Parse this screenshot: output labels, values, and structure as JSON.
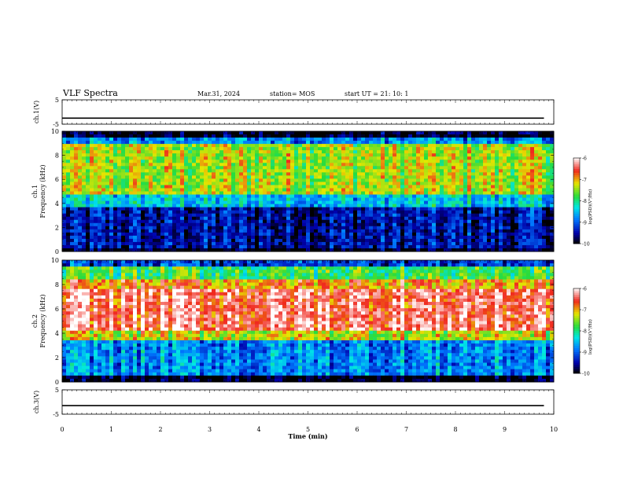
{
  "header": {
    "title": "VLF Spectra",
    "date": "Mar.31, 2024",
    "station": "station= MOS",
    "start": "start  UT  =  21: 10: 1"
  },
  "chart_data": [
    {
      "type": "line",
      "panel": "ch1-voltage",
      "ylabel": "ch.1(V)",
      "ylim": [
        -5,
        5
      ],
      "yticks": [
        "5",
        "-5"
      ],
      "xlim": [
        0,
        10
      ],
      "series": [
        {
          "x": [
            0,
            9.8
          ],
          "y": [
            -2.5,
            -2.5
          ]
        }
      ]
    },
    {
      "type": "heatmap",
      "panel": "ch1-spectrogram",
      "ylabel": "ch.1\nFrequency (kHz)",
      "ylim": [
        0,
        10
      ],
      "yticks": [
        "0",
        "2",
        "4",
        "6",
        "8",
        "10"
      ],
      "xlim": [
        0,
        9.8
      ],
      "bands": [
        {
          "from": 0,
          "to": 0.3,
          "level": -10
        },
        {
          "from": 0.3,
          "to": 3.8,
          "level": -9.5
        },
        {
          "from": 3.8,
          "to": 4.8,
          "level": -8.5
        },
        {
          "from": 4.8,
          "to": 9.0,
          "level": -7.4
        },
        {
          "from": 9.0,
          "to": 9.6,
          "level": -8.8
        },
        {
          "from": 9.6,
          "to": 10,
          "level": -10
        }
      ],
      "colorbar": {
        "range": [
          -10,
          -6
        ],
        "ticks": [
          "-6",
          "-7",
          "-8",
          "-9",
          "-10"
        ],
        "label": "log(PSD)(V²/Hz)"
      }
    },
    {
      "type": "heatmap",
      "panel": "ch2-spectrogram",
      "ylabel": "ch.2\nFrequency (kHz)",
      "ylim": [
        0,
        10
      ],
      "yticks": [
        "0",
        "2",
        "4",
        "6",
        "8",
        "10"
      ],
      "xlim": [
        0,
        9.8
      ],
      "bands": [
        {
          "from": 0,
          "to": 0.4,
          "level": -10
        },
        {
          "from": 0.4,
          "to": 3.4,
          "level": -8.8
        },
        {
          "from": 3.4,
          "to": 4.2,
          "level": -7.3
        },
        {
          "from": 4.2,
          "to": 7.6,
          "level": -6.4
        },
        {
          "from": 7.6,
          "to": 8.4,
          "level": -6.9
        },
        {
          "from": 8.4,
          "to": 9.6,
          "level": -7.8
        },
        {
          "from": 9.6,
          "to": 10,
          "level": -9.2
        }
      ],
      "colorbar": {
        "range": [
          -10,
          -6
        ],
        "ticks": [
          "-6",
          "-7",
          "-8",
          "-9",
          "-10"
        ],
        "label": "log(PSD)(V²/Hz)"
      }
    },
    {
      "type": "line",
      "panel": "ch3-voltage",
      "ylabel": "ch.3(V)",
      "ylim": [
        -5,
        5
      ],
      "yticks": [
        "5",
        "-5"
      ],
      "xlim": [
        0,
        10
      ],
      "xlabel": "Time  (min)",
      "xticks": [
        "0",
        "1",
        "2",
        "3",
        "4",
        "5",
        "6",
        "7",
        "8",
        "9",
        "10"
      ],
      "series": [
        {
          "x": [
            0,
            9.8
          ],
          "y": [
            -1.5,
            -1.5
          ]
        }
      ]
    }
  ]
}
